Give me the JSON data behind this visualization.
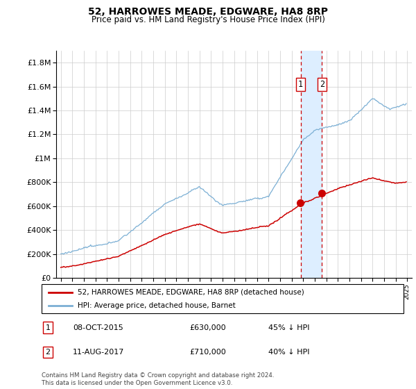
{
  "title": "52, HARROWES MEADE, EDGWARE, HA8 8RP",
  "subtitle": "Price paid vs. HM Land Registry's House Price Index (HPI)",
  "legend_entry1": "52, HARROWES MEADE, EDGWARE, HA8 8RP (detached house)",
  "legend_entry2": "HPI: Average price, detached house, Barnet",
  "annotation1_label": "1",
  "annotation1_date": "08-OCT-2015",
  "annotation1_price": "£630,000",
  "annotation1_hpi": "45% ↓ HPI",
  "annotation1_year": 2015.77,
  "annotation1_value": 630000,
  "annotation2_label": "2",
  "annotation2_date": "11-AUG-2017",
  "annotation2_price": "£710,000",
  "annotation2_hpi": "40% ↓ HPI",
  "annotation2_year": 2017.62,
  "annotation2_value": 710000,
  "hpi_color": "#7bafd4",
  "price_color": "#cc0000",
  "shading_color": "#ddeeff",
  "vline_color": "#cc0000",
  "background_color": "#ffffff",
  "footer": "Contains HM Land Registry data © Crown copyright and database right 2024.\nThis data is licensed under the Open Government Licence v3.0.",
  "ylim": [
    0,
    1900000
  ],
  "yticks": [
    0,
    200000,
    400000,
    600000,
    800000,
    1000000,
    1200000,
    1400000,
    1600000,
    1800000
  ],
  "ylabel_map": {
    "0": "£0",
    "200000": "£200K",
    "400000": "£400K",
    "600000": "£600K",
    "800000": "£800K",
    "1000000": "£1M",
    "1200000": "£1.2M",
    "1400000": "£1.4M",
    "1600000": "£1.6M",
    "1800000": "£1.8M"
  }
}
